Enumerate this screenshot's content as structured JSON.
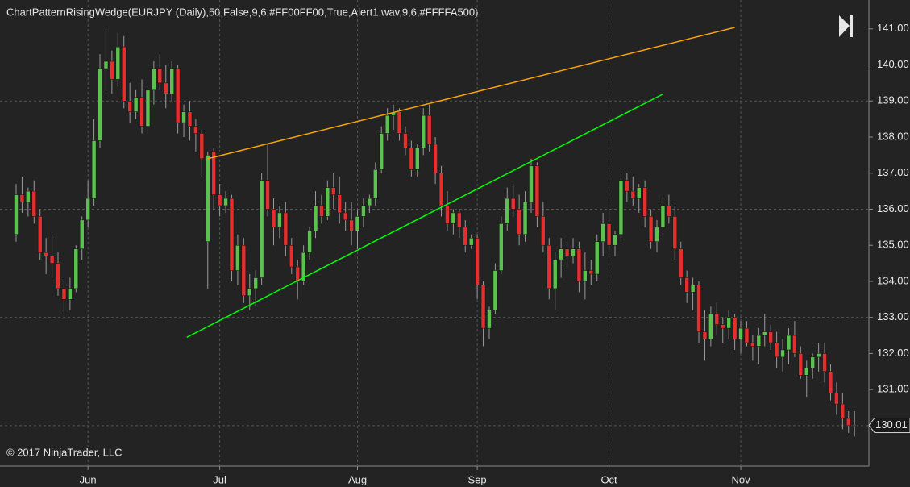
{
  "chart_data": {
    "type": "candlestick",
    "title": "ChartPatternRisingWedge(EURJPY (Daily),50,False,9,6,#FF00FF00,True,Alert1.wav,9,6,#FFFFA500)",
    "copyright": "© 2017 NinjaTrader, LLC",
    "up_color": "#5cc24f",
    "down_color": "#e3302f",
    "ylim": [
      128.88,
      141.8
    ],
    "yticks": [
      {
        "value": 130,
        "label": "130.00"
      },
      {
        "value": 131,
        "label": "131.00"
      },
      {
        "value": 132,
        "label": "132.00"
      },
      {
        "value": 133,
        "label": "133.00"
      },
      {
        "value": 134,
        "label": "134.00"
      },
      {
        "value": 135,
        "label": "135.00"
      },
      {
        "value": 136,
        "label": "136.00"
      },
      {
        "value": 137,
        "label": "137.00"
      },
      {
        "value": 138,
        "label": "138.00"
      },
      {
        "value": 139,
        "label": "139.00"
      },
      {
        "value": 140,
        "label": "140.00"
      },
      {
        "value": 141,
        "label": "141.00"
      }
    ],
    "ygrid": [
      130,
      133,
      136,
      139
    ],
    "current_price": 130.01,
    "categories": [
      null,
      null,
      null,
      null,
      null,
      null,
      null,
      null,
      null,
      null,
      null,
      null,
      "Jun",
      null,
      null,
      null,
      null,
      null,
      null,
      null,
      null,
      null,
      null,
      null,
      null,
      null,
      null,
      null,
      null,
      null,
      null,
      null,
      null,
      null,
      "Jul",
      null,
      null,
      null,
      null,
      null,
      null,
      null,
      null,
      null,
      null,
      null,
      null,
      null,
      null,
      null,
      null,
      null,
      null,
      null,
      null,
      null,
      null,
      "Aug",
      null,
      null,
      null,
      null,
      null,
      null,
      null,
      null,
      null,
      null,
      null,
      null,
      null,
      null,
      null,
      null,
      null,
      null,
      null,
      "Sep",
      null,
      null,
      null,
      null,
      null,
      null,
      null,
      null,
      null,
      null,
      null,
      null,
      null,
      null,
      null,
      null,
      null,
      null,
      null,
      null,
      null,
      "Oct",
      null,
      null,
      null,
      null,
      null,
      null,
      null,
      null,
      null,
      null,
      null,
      null,
      null,
      null,
      null,
      null,
      null,
      null,
      null,
      null,
      null,
      "Nov",
      null,
      null,
      null,
      null,
      null,
      null,
      null,
      null,
      null,
      null,
      null,
      null,
      null,
      null,
      null,
      null,
      null,
      null,
      null
    ],
    "open": [
      135.3,
      136.4,
      136.2,
      136.5,
      135.8,
      134.8,
      134.7,
      134.5,
      133.8,
      133.5,
      133.8,
      134.9,
      135.7,
      136.3,
      137.9,
      139.9,
      140.1,
      139.6,
      140.5,
      139.0,
      138.7,
      139.1,
      138.3,
      139.3,
      139.9,
      139.5,
      139.2,
      139.9,
      138.4,
      138.7,
      138.3,
      138.1,
      135.1,
      137.6,
      136.4,
      136.1,
      136.3,
      134.3,
      135.0,
      133.6,
      133.8,
      134.1,
      136.8,
      136.0,
      135.5,
      135.9,
      135.0,
      134.4,
      134.0,
      134.8,
      135.4,
      136.1,
      135.8,
      136.6,
      136.4,
      135.9,
      135.7,
      135.4,
      135.8,
      136.1,
      136.3,
      137.1,
      138.1,
      138.6,
      138.7,
      138.1,
      137.7,
      137.1,
      137.7,
      138.6,
      137.8,
      137.0,
      136.1,
      135.6,
      135.9,
      135.5,
      135.0,
      135.2,
      133.9,
      132.7,
      133.2,
      134.3,
      135.6,
      136.3,
      136.0,
      135.3,
      136.2,
      137.2,
      135.8,
      135.0,
      133.8,
      134.6,
      134.9,
      134.7,
      134.9,
      134.0,
      134.3,
      134.2,
      135.1,
      135.6,
      135.0,
      135.3,
      136.8,
      136.5,
      136.3,
      136.6,
      135.8,
      135.1,
      135.5,
      136.1,
      135.8,
      134.9,
      134.1,
      133.7,
      133.9,
      132.6,
      132.4,
      133.1,
      132.8,
      132.7,
      133.0,
      132.4,
      132.7,
      132.3,
      132.2,
      132.5,
      132.6,
      132.3,
      131.9,
      132.1,
      132.5,
      132.0,
      131.4,
      131.6,
      131.9,
      132.0,
      131.5,
      130.9,
      130.6,
      130.2,
      130.0
    ],
    "high": [
      136.7,
      136.9,
      136.6,
      136.8,
      136.0,
      135.2,
      135.3,
      134.8,
      134.0,
      134.1,
      135.0,
      135.8,
      136.8,
      138.5,
      140.3,
      141.0,
      140.4,
      140.9,
      140.8,
      139.5,
      139.3,
      139.6,
      139.4,
      140.1,
      140.3,
      140.0,
      140.1,
      140.0,
      138.9,
      139.0,
      138.5,
      138.2,
      137.6,
      137.7,
      136.7,
      136.5,
      136.4,
      135.3,
      135.2,
      134.2,
      134.3,
      137.0,
      137.8,
      136.3,
      136.1,
      136.2,
      135.2,
      134.6,
      135.0,
      135.5,
      136.5,
      136.4,
      136.8,
      137.0,
      136.9,
      136.2,
      136.2,
      136.0,
      136.3,
      136.4,
      137.3,
      138.3,
      138.8,
      138.9,
      138.8,
      138.3,
      137.9,
      137.8,
      138.8,
      138.9,
      138.0,
      137.2,
      136.5,
      136.0,
      136.0,
      135.7,
      135.3,
      135.3,
      134.0,
      133.3,
      134.5,
      135.8,
      136.6,
      136.7,
      136.4,
      136.5,
      137.4,
      137.3,
      136.2,
      135.2,
      134.8,
      135.2,
      135.1,
      135.2,
      135.1,
      134.8,
      134.6,
      135.3,
      135.9,
      136.0,
      135.4,
      137.0,
      137.0,
      136.9,
      136.7,
      136.8,
      136.0,
      135.7,
      136.4,
      136.4,
      136.1,
      135.1,
      134.3,
      134.1,
      134.0,
      133.2,
      133.3,
      133.4,
      133.0,
      133.2,
      133.1,
      132.9,
      132.9,
      132.5,
      132.7,
      133.1,
      132.8,
      132.6,
      132.4,
      132.7,
      132.9,
      132.2,
      131.8,
      132.0,
      132.3,
      132.3,
      131.7,
      131.2,
      130.9,
      130.4,
      130.4
    ],
    "low": [
      135.1,
      135.9,
      135.8,
      135.6,
      134.6,
      134.2,
      134.1,
      133.6,
      133.1,
      133.2,
      133.7,
      134.6,
      135.5,
      136.1,
      137.7,
      139.2,
      139.2,
      139.4,
      138.8,
      138.4,
      138.5,
      138.1,
      138.1,
      138.9,
      139.3,
      138.8,
      139.0,
      138.1,
      138.0,
      137.9,
      137.6,
      136.9,
      133.8,
      136.0,
      135.8,
      135.9,
      134.0,
      133.9,
      133.4,
      133.2,
      133.3,
      133.9,
      135.8,
      135.0,
      135.2,
      134.7,
      134.2,
      133.5,
      133.9,
      134.6,
      135.2,
      135.6,
      135.7,
      136.0,
      135.6,
      135.4,
      135.0,
      134.9,
      135.5,
      135.9,
      136.1,
      137.0,
      137.9,
      138.2,
      137.9,
      137.5,
      136.9,
      136.9,
      137.5,
      137.6,
      136.7,
      135.8,
      135.4,
      135.3,
      135.2,
      134.8,
      134.9,
      133.5,
      132.2,
      132.4,
      133.1,
      134.2,
      135.4,
      135.8,
      135.0,
      135.1,
      135.9,
      135.5,
      134.8,
      133.5,
      133.2,
      134.1,
      134.4,
      134.5,
      133.7,
      133.5,
      133.9,
      134.0,
      134.7,
      134.8,
      134.7,
      135.1,
      136.2,
      136.1,
      135.9,
      135.5,
      134.9,
      134.8,
      135.3,
      135.6,
      134.6,
      133.9,
      133.4,
      133.2,
      132.3,
      131.8,
      132.2,
      132.5,
      132.3,
      132.4,
      132.1,
      132.0,
      132.2,
      131.8,
      131.7,
      132.2,
      132.1,
      131.6,
      131.5,
      131.7,
      131.9,
      131.3,
      130.8,
      131.3,
      131.5,
      131.2,
      130.7,
      130.3,
      129.9,
      129.8,
      129.7
    ],
    "close": [
      136.4,
      136.2,
      136.5,
      135.8,
      134.8,
      134.7,
      134.5,
      133.8,
      133.5,
      133.8,
      134.9,
      135.7,
      136.3,
      137.9,
      139.9,
      140.1,
      139.6,
      140.5,
      139.0,
      138.7,
      139.1,
      138.3,
      139.3,
      139.9,
      139.5,
      139.2,
      139.9,
      138.4,
      138.7,
      138.3,
      138.1,
      137.4,
      137.5,
      136.4,
      136.1,
      136.3,
      134.3,
      135.0,
      133.6,
      133.8,
      134.1,
      136.8,
      136.0,
      135.5,
      135.9,
      135.0,
      134.4,
      134.0,
      134.8,
      135.4,
      136.1,
      135.8,
      136.6,
      136.4,
      135.9,
      135.7,
      135.4,
      135.8,
      136.1,
      136.3,
      137.1,
      138.1,
      138.6,
      138.7,
      138.1,
      137.7,
      137.1,
      137.7,
      138.6,
      137.8,
      137.0,
      136.1,
      135.6,
      135.9,
      135.5,
      135.0,
      135.2,
      133.9,
      132.7,
      133.2,
      134.3,
      135.6,
      136.3,
      136.0,
      135.3,
      136.2,
      137.2,
      135.8,
      135.0,
      133.8,
      134.6,
      134.9,
      134.7,
      134.9,
      134.0,
      134.3,
      134.2,
      135.1,
      135.6,
      135.0,
      135.3,
      136.8,
      136.5,
      136.3,
      136.6,
      135.8,
      135.1,
      135.5,
      136.1,
      135.8,
      134.9,
      134.1,
      133.7,
      133.9,
      132.6,
      132.4,
      133.1,
      132.8,
      132.7,
      133.0,
      132.4,
      132.7,
      132.3,
      132.2,
      132.5,
      132.6,
      132.3,
      131.9,
      132.1,
      132.5,
      132.0,
      131.4,
      131.6,
      131.9,
      132.0,
      131.5,
      130.9,
      130.6,
      130.2,
      130.0,
      130.01
    ],
    "trendlines": [
      {
        "color": "#FFA500",
        "x0": 32,
        "y0": 137.4,
        "x1": 120,
        "y1": 141.04
      },
      {
        "color": "#00FF00",
        "x0": 28.5,
        "y0": 132.45,
        "x1": 108,
        "y1": 139.19
      }
    ]
  }
}
